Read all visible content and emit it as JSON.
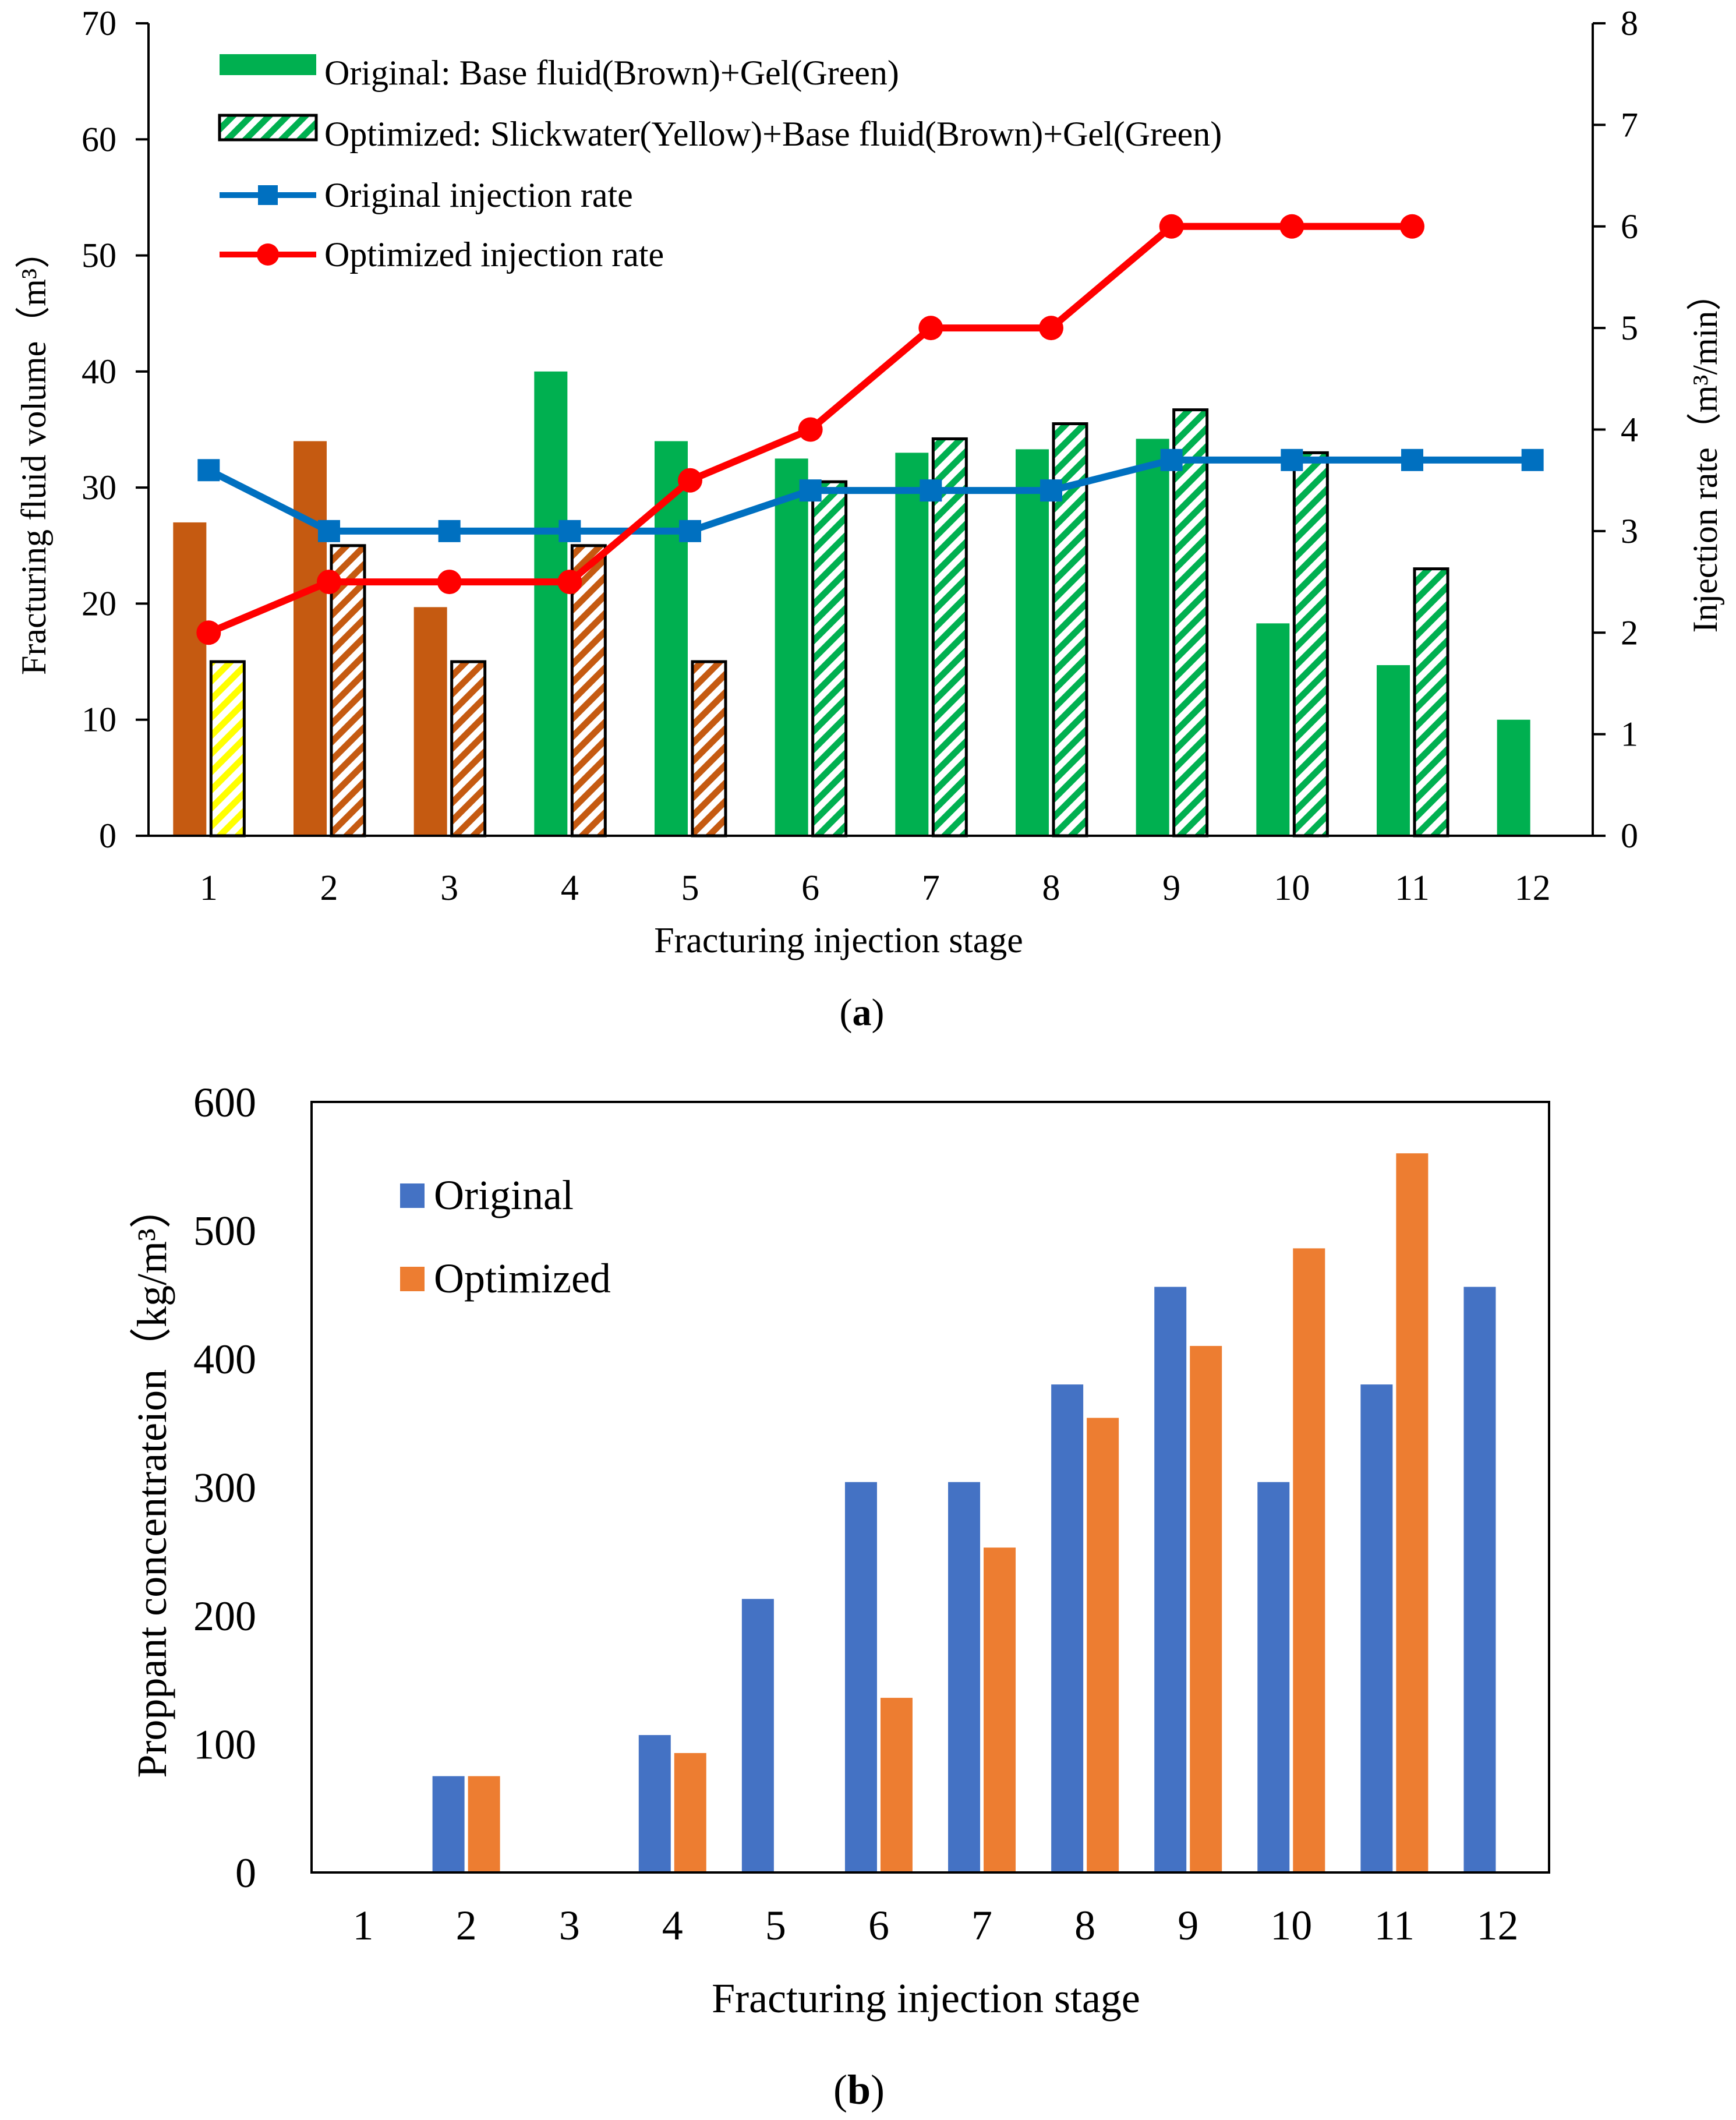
{
  "colors": {
    "brown": "#C55A11",
    "green": "#00B050",
    "yellow": "#FFFF00",
    "blue_line": "#0070C0",
    "red_line": "#FF0000",
    "bar_blue": "#4472C4",
    "bar_orange": "#ED7D31"
  },
  "chart_data": [
    {
      "id": "a",
      "type": "bar+line",
      "panel_label": "a",
      "categories": [
        "1",
        "2",
        "3",
        "4",
        "5",
        "6",
        "7",
        "8",
        "9",
        "10",
        "11",
        "12"
      ],
      "xlabel": "Fracturing injection stage",
      "ylabel": "Fracturing fluid volume（m³）",
      "ylabel_right": "Injection rate（m³/min）",
      "ylim": [
        0,
        70
      ],
      "yticks": [
        "0",
        "10",
        "20",
        "30",
        "40",
        "50",
        "60",
        "70"
      ],
      "ylim_right": [
        0,
        8
      ],
      "yticks_right": [
        "0",
        "1",
        "2",
        "3",
        "4",
        "5",
        "6",
        "7",
        "8"
      ],
      "legend": [
        "Original: Base fluid(Brown)+Gel(Green)",
        "Optimized: Slickwater(Yellow)+Base fluid(Brown)+Gel(Green)",
        "Original injection rate",
        "Optimized injection rate"
      ],
      "series": [
        {
          "name": "Original fluid volume",
          "kind": "bar",
          "values": [
            27,
            34,
            19.7,
            40,
            34,
            32.5,
            33,
            33.3,
            34.2,
            18.3,
            14.7,
            10
          ],
          "fluids": [
            "brown",
            "brown",
            "brown",
            "green",
            "green",
            "green",
            "green",
            "green",
            "green",
            "green",
            "green",
            "green"
          ]
        },
        {
          "name": "Optimized fluid volume",
          "kind": "hatched-bar",
          "values": [
            15,
            25,
            15,
            25,
            15,
            30.5,
            34.2,
            35.5,
            36.7,
            33,
            23,
            null
          ],
          "fluids": [
            "yellow",
            "brown",
            "brown",
            "brown",
            "brown",
            "green",
            "green",
            "green",
            "green",
            "green",
            "green",
            null
          ]
        },
        {
          "name": "Original injection rate",
          "kind": "line",
          "axis": "right",
          "values": [
            3.6,
            3,
            3,
            3,
            3,
            3.4,
            3.4,
            3.4,
            3.7,
            3.7,
            3.7,
            3.7
          ]
        },
        {
          "name": "Optimized injection rate",
          "kind": "line",
          "axis": "right",
          "values": [
            2,
            2.5,
            2.5,
            2.5,
            3.5,
            4,
            5,
            5,
            6,
            6,
            6,
            null
          ]
        }
      ]
    },
    {
      "id": "b",
      "type": "bar",
      "panel_label": "b",
      "categories": [
        "1",
        "2",
        "3",
        "4",
        "5",
        "6",
        "7",
        "8",
        "9",
        "10",
        "11",
        "12"
      ],
      "xlabel": "Fracturing injection stage",
      "ylabel": "Proppant concentrateion（kg/m³）",
      "ylim": [
        0,
        600
      ],
      "yticks": [
        "0",
        "100",
        "200",
        "300",
        "400",
        "500",
        "600"
      ],
      "legend": [
        "Original",
        "Optimized"
      ],
      "series": [
        {
          "name": "Original",
          "values": [
            0,
            75,
            0,
            107,
            213,
            304,
            304,
            380,
            456,
            304,
            380,
            456
          ]
        },
        {
          "name": "Optimized",
          "values": [
            0,
            75,
            0,
            93,
            0,
            136,
            253,
            354,
            410,
            486,
            560,
            0
          ]
        }
      ]
    }
  ]
}
